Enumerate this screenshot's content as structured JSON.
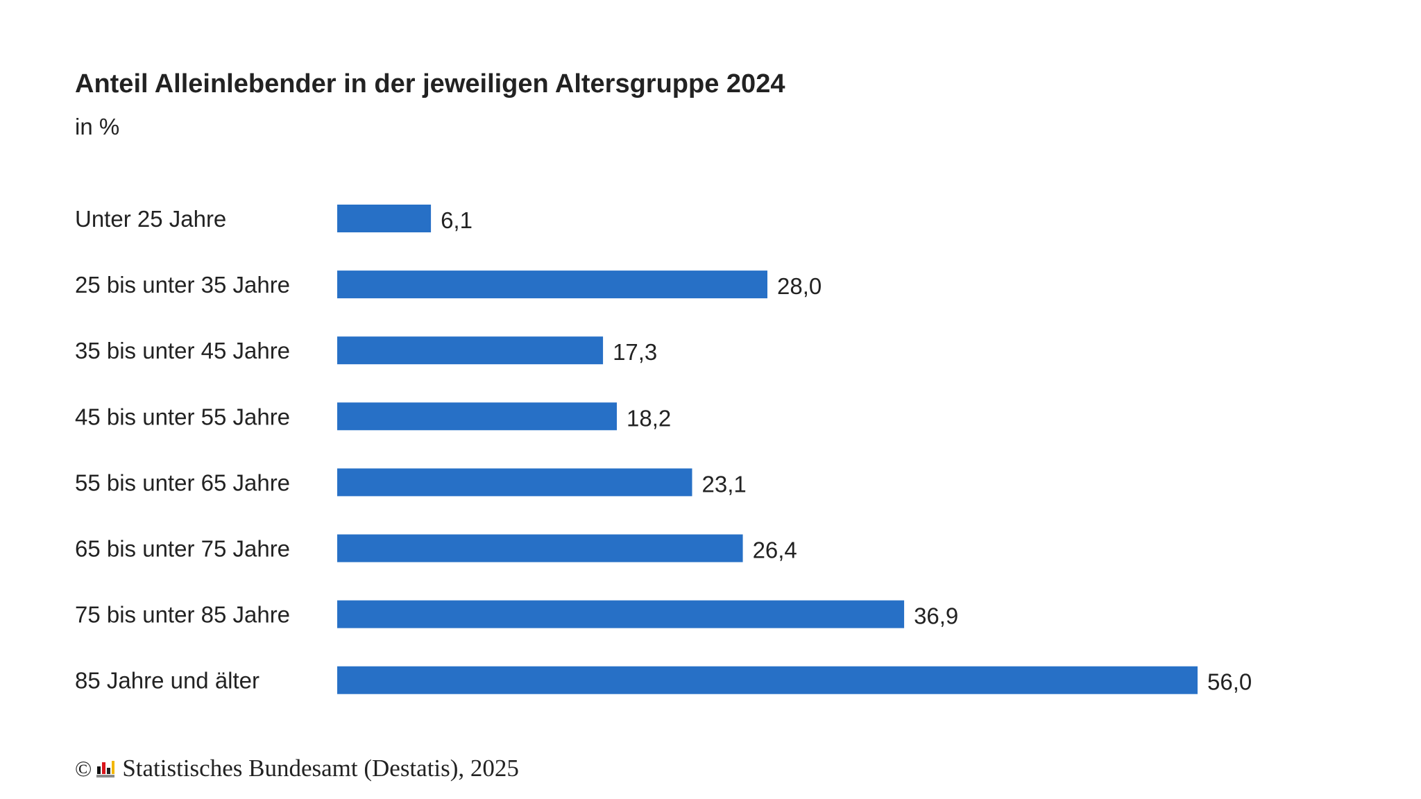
{
  "chart_data": {
    "type": "bar",
    "orientation": "horizontal",
    "title": "Anteil Alleinlebender in der jeweiligen Altersgruppe 2024",
    "subtitle": "in %",
    "categories": [
      "Unter 25 Jahre",
      "25 bis unter 35 Jahre",
      "35 bis unter 45 Jahre",
      "45 bis unter 55 Jahre",
      "55 bis unter 65 Jahre",
      "65 bis unter 75 Jahre",
      "75 bis unter 85 Jahre",
      "85 Jahre und älter"
    ],
    "values": [
      6.1,
      28.0,
      17.3,
      18.2,
      23.1,
      26.4,
      36.9,
      56.0
    ],
    "value_labels": [
      "6,1",
      "28,0",
      "17,3",
      "18,2",
      "23,1",
      "26,4",
      "36,9",
      "56,0"
    ],
    "xlim": [
      0,
      56
    ],
    "grid": false,
    "bar_color": "#2770c6"
  },
  "footer": {
    "copyright": "©",
    "source": "Statistisches Bundesamt (Destatis), 2025",
    "logo": "destatis-logo-icon"
  }
}
